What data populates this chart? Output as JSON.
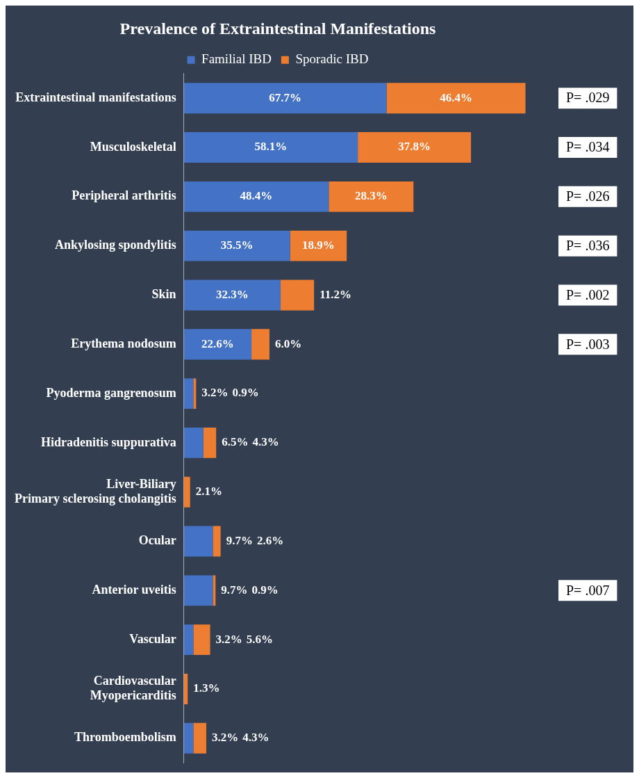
{
  "chart_data": {
    "type": "bar",
    "orientation": "horizontal",
    "stacked": true,
    "title": "Prevalence of Extraintestinal Manifestations",
    "legend": "top",
    "categories": [
      "Extraintestinal manifestations",
      "Musculoskeletal",
      "Peripheral arthritis",
      "Ankylosing spondylitis",
      "Skin",
      "Erythema nodosum",
      "Pyoderma gangrenosum",
      "Hidradenitis suppurativa",
      "Liver-Biliary\nPrimary sclerosing cholangitis",
      "Ocular",
      "Anterior uveitis",
      "Vascular",
      "Cardiovascular\nMyopericarditis",
      "Thromboembolism"
    ],
    "series": [
      {
        "name": "Familial IBD",
        "color": "#4472c4",
        "values": [
          67.7,
          58.1,
          48.4,
          35.5,
          32.3,
          22.6,
          3.2,
          6.5,
          null,
          9.7,
          9.7,
          3.2,
          null,
          3.2
        ],
        "value_labels": [
          "67.7%",
          "58.1%",
          "48.4%",
          "35.5%",
          "32.3%",
          "22.6%",
          "3.2%",
          "6.5%",
          null,
          "9.7%",
          "9.7%",
          "3.2%",
          null,
          "3.2%"
        ]
      },
      {
        "name": "Sporadic IBD",
        "color": "#ed7d31",
        "values": [
          46.4,
          37.8,
          28.3,
          18.9,
          11.2,
          6.0,
          0.9,
          4.3,
          2.1,
          2.6,
          0.9,
          5.6,
          1.3,
          4.3
        ],
        "value_labels": [
          "46.4%",
          "37.8%",
          "28.3%",
          "18.9%",
          "11.2%",
          "6.0%",
          "0.9%",
          "4.3%",
          "2.1%",
          "2.6%",
          "0.9%",
          "5.6%",
          "1.3%",
          "4.3%"
        ]
      }
    ],
    "annotations": [
      "P= .029",
      "P= .034",
      "P= .026",
      "P= .036",
      "P= .002",
      "P= .003",
      "P= .007"
    ]
  }
}
